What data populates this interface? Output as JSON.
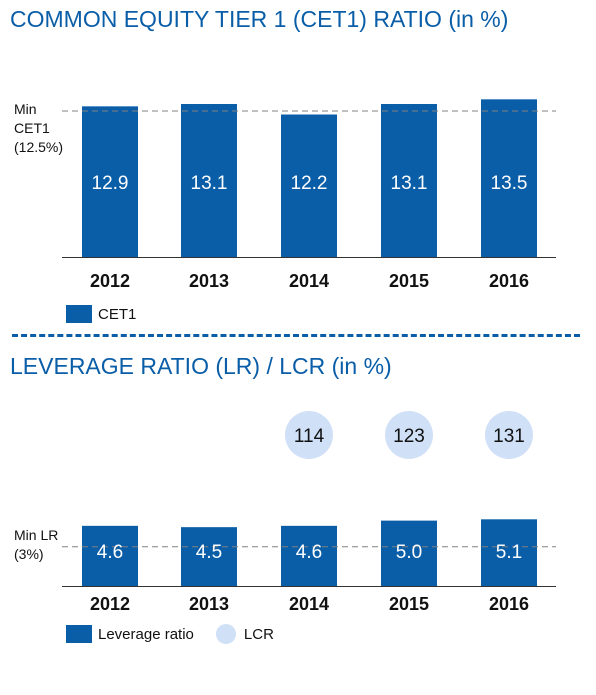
{
  "colors": {
    "bar": "#0a5ea8",
    "lcr": "#cfe0f7",
    "accent": "#0a5ea8",
    "reference_line": "#808080"
  },
  "chart_data": [
    {
      "type": "bar",
      "title": "COMMON EQUITY TIER 1 (CET1) RATIO (in %)",
      "categories": [
        "2012",
        "2013",
        "2014",
        "2015",
        "2016"
      ],
      "series": [
        {
          "name": "CET1",
          "values": [
            12.9,
            13.1,
            12.2,
            13.1,
            13.5
          ]
        }
      ],
      "reference_line": {
        "value": 12.5,
        "label_lines": [
          "Min",
          "CET1",
          "(12.5%)"
        ]
      },
      "ylim": [
        0,
        13.7
      ],
      "grid": false,
      "legend_position": "bottom-left"
    },
    {
      "type": "bar",
      "title": "LEVERAGE RATIO (LR) / LCR (in %)",
      "categories": [
        "2012",
        "2013",
        "2014",
        "2015",
        "2016"
      ],
      "series": [
        {
          "name": "Leverage ratio",
          "values": [
            4.6,
            4.5,
            4.6,
            5.0,
            5.1
          ]
        },
        {
          "name": "LCR",
          "values": [
            null,
            null,
            114,
            123,
            131
          ]
        }
      ],
      "reference_line": {
        "value": 3,
        "label_lines": [
          "Min LR",
          "(3%)"
        ]
      },
      "ylim": [
        0,
        5.2
      ],
      "grid": false,
      "legend_position": "bottom-left"
    }
  ]
}
